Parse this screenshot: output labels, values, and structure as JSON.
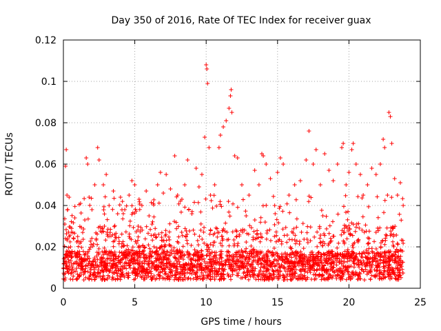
{
  "chart_data": {
    "type": "scatter",
    "title": "Day 350 of 2016, Rate Of TEC Index for receiver guax",
    "xlabel": "GPS time / hours",
    "ylabel": "ROTI / TECUs",
    "xlim": [
      0,
      25
    ],
    "ylim": [
      0,
      0.12
    ],
    "xticks": [
      0,
      5,
      10,
      15,
      20,
      25
    ],
    "xtick_labels": [
      "0",
      "5",
      "10",
      "15",
      "20",
      "25"
    ],
    "yticks": [
      0,
      0.02,
      0.04,
      0.06,
      0.08,
      0.1,
      0.12
    ],
    "ytick_labels": [
      "0",
      "0.02",
      "0.04",
      "0.06",
      "0.08",
      "0.1",
      "0.12"
    ],
    "grid": true,
    "legend": "none",
    "marker": "plus",
    "color": "#ff0000",
    "series": [
      {
        "points": [
          [
            0.05,
            0.012
          ],
          [
            0.1,
            0.031
          ],
          [
            0.15,
            0.059
          ],
          [
            0.2,
            0.067
          ],
          [
            0.25,
            0.045
          ],
          [
            0.3,
            0.038
          ],
          [
            0.4,
            0.044
          ],
          [
            0.5,
            0.02
          ],
          [
            0.6,
            0.015
          ],
          [
            0.8,
            0.034
          ],
          [
            1.0,
            0.025
          ],
          [
            1.2,
            0.041
          ],
          [
            1.5,
            0.033
          ],
          [
            1.6,
            0.063
          ],
          [
            1.7,
            0.06
          ],
          [
            1.8,
            0.044
          ],
          [
            2.0,
            0.038
          ],
          [
            2.2,
            0.05
          ],
          [
            2.4,
            0.068
          ],
          [
            2.5,
            0.062
          ],
          [
            2.8,
            0.05
          ],
          [
            3.0,
            0.055
          ],
          [
            3.2,
            0.04
          ],
          [
            3.5,
            0.047
          ],
          [
            3.8,
            0.036
          ],
          [
            4.0,
            0.044
          ],
          [
            4.3,
            0.038
          ],
          [
            4.6,
            0.045
          ],
          [
            4.8,
            0.052
          ],
          [
            5.0,
            0.05
          ],
          [
            5.3,
            0.043
          ],
          [
            5.5,
            0.04
          ],
          [
            5.8,
            0.047
          ],
          [
            6.0,
            0.035
          ],
          [
            6.3,
            0.041
          ],
          [
            6.6,
            0.05
          ],
          [
            6.8,
            0.056
          ],
          [
            7.0,
            0.046
          ],
          [
            7.2,
            0.055
          ],
          [
            7.5,
            0.048
          ],
          [
            7.8,
            0.064
          ],
          [
            8.0,
            0.045
          ],
          [
            8.3,
            0.043
          ],
          [
            8.5,
            0.05
          ],
          [
            8.7,
            0.062
          ],
          [
            9.0,
            0.036
          ],
          [
            9.3,
            0.058
          ],
          [
            9.5,
            0.049
          ],
          [
            9.7,
            0.055
          ],
          [
            9.9,
            0.073
          ],
          [
            10.0,
            0.108
          ],
          [
            10.05,
            0.106
          ],
          [
            10.1,
            0.099
          ],
          [
            10.2,
            0.068
          ],
          [
            10.3,
            0.045
          ],
          [
            10.6,
            0.05
          ],
          [
            10.9,
            0.068
          ],
          [
            11.0,
            0.074
          ],
          [
            11.2,
            0.078
          ],
          [
            11.4,
            0.081
          ],
          [
            11.6,
            0.087
          ],
          [
            11.7,
            0.093
          ],
          [
            11.75,
            0.096
          ],
          [
            11.8,
            0.085
          ],
          [
            12.0,
            0.064
          ],
          [
            12.2,
            0.063
          ],
          [
            12.5,
            0.05
          ],
          [
            12.8,
            0.035
          ],
          [
            13.0,
            0.045
          ],
          [
            13.4,
            0.057
          ],
          [
            13.7,
            0.05
          ],
          [
            13.9,
            0.065
          ],
          [
            14.0,
            0.064
          ],
          [
            14.2,
            0.06
          ],
          [
            14.5,
            0.053
          ],
          [
            14.8,
            0.04
          ],
          [
            15.0,
            0.056
          ],
          [
            15.2,
            0.063
          ],
          [
            15.4,
            0.06
          ],
          [
            15.8,
            0.045
          ],
          [
            16.2,
            0.05
          ],
          [
            16.6,
            0.052
          ],
          [
            17.0,
            0.062
          ],
          [
            17.2,
            0.076
          ],
          [
            17.5,
            0.06
          ],
          [
            17.7,
            0.067
          ],
          [
            18.0,
            0.05
          ],
          [
            18.3,
            0.065
          ],
          [
            18.6,
            0.057
          ],
          [
            18.9,
            0.052
          ],
          [
            19.2,
            0.06
          ],
          [
            19.5,
            0.068
          ],
          [
            19.6,
            0.07
          ],
          [
            19.8,
            0.05
          ],
          [
            20.0,
            0.056
          ],
          [
            20.2,
            0.067
          ],
          [
            20.3,
            0.07
          ],
          [
            20.5,
            0.06
          ],
          [
            20.8,
            0.055
          ],
          [
            21.0,
            0.045
          ],
          [
            21.3,
            0.05
          ],
          [
            21.6,
            0.058
          ],
          [
            21.9,
            0.055
          ],
          [
            22.2,
            0.06
          ],
          [
            22.4,
            0.072
          ],
          [
            22.5,
            0.068
          ],
          [
            22.7,
            0.045
          ],
          [
            22.8,
            0.085
          ],
          [
            22.9,
            0.083
          ],
          [
            23.0,
            0.07
          ],
          [
            23.2,
            0.053
          ],
          [
            23.4,
            0.045
          ],
          [
            23.6,
            0.051
          ],
          [
            23.8,
            0.04
          ]
        ]
      }
    ]
  }
}
